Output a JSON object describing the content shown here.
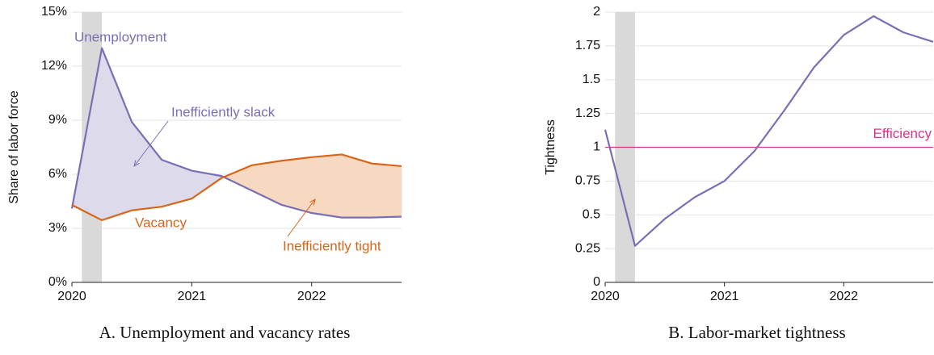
{
  "chart_data": [
    {
      "type": "line",
      "title": "A. Unemployment and vacancy rates",
      "ylabel": "Share of labor force",
      "x": [
        2020,
        2020.25,
        2020.5,
        2020.75,
        2021,
        2021.25,
        2021.5,
        2021.75,
        2022,
        2022.25,
        2022.5,
        2022.75
      ],
      "series": [
        {
          "name": "Unemployment",
          "color": "#7b6fb4",
          "values": [
            4.1,
            13.0,
            8.9,
            6.8,
            6.2,
            5.9,
            5.1,
            4.3,
            3.85,
            3.6,
            3.6,
            3.65
          ]
        },
        {
          "name": "Vacancy",
          "color": "#d9651a",
          "values": [
            4.3,
            3.45,
            4.0,
            4.2,
            4.65,
            5.8,
            6.5,
            6.75,
            6.95,
            7.1,
            6.6,
            6.45
          ]
        }
      ],
      "fill_between": {
        "above_first": "#dcdaeb",
        "above_second": "#f7d8c0"
      },
      "annotations": [
        {
          "text": "Inefficiently slack",
          "color": "#7b6fb4"
        },
        {
          "text": "Inefficiently tight",
          "color": "#d9651a"
        }
      ],
      "shade": [
        2020.083,
        2020.25
      ],
      "shade_color": "#d9d9d9",
      "xlim": [
        2020,
        2022.75
      ],
      "xticks": [
        2020,
        2021,
        2022
      ],
      "ylim": [
        0,
        15
      ],
      "yticks": [
        {
          "value": 0,
          "label": "0%"
        },
        {
          "value": 3,
          "label": "3%"
        },
        {
          "value": 6,
          "label": "6%"
        },
        {
          "value": 9,
          "label": "9%"
        },
        {
          "value": 12,
          "label": "12%"
        },
        {
          "value": 15,
          "label": "15%"
        }
      ],
      "grid": true
    },
    {
      "type": "line",
      "title": "B. Labor-market tightness",
      "ylabel": "Tightness",
      "x": [
        2020,
        2020.25,
        2020.5,
        2020.75,
        2021,
        2021.25,
        2021.5,
        2021.75,
        2022,
        2022.25,
        2022.5,
        2022.75
      ],
      "series": [
        {
          "color": "#7b6fb4",
          "values": [
            1.13,
            0.27,
            0.47,
            0.63,
            0.75,
            0.97,
            1.27,
            1.59,
            1.83,
            1.97,
            1.85,
            1.78
          ]
        }
      ],
      "reference_line": {
        "value": 1,
        "label": "Efficiency",
        "color": "#d6338a"
      },
      "shade": [
        2020.083,
        2020.25
      ],
      "shade_color": "#d9d9d9",
      "xlim": [
        2020,
        2022.75
      ],
      "xticks": [
        2020,
        2021,
        2022
      ],
      "ylim": [
        0,
        2
      ],
      "yticks": [
        0,
        0.25,
        0.5,
        0.75,
        1,
        1.25,
        1.5,
        1.75,
        2
      ],
      "grid": true
    }
  ]
}
